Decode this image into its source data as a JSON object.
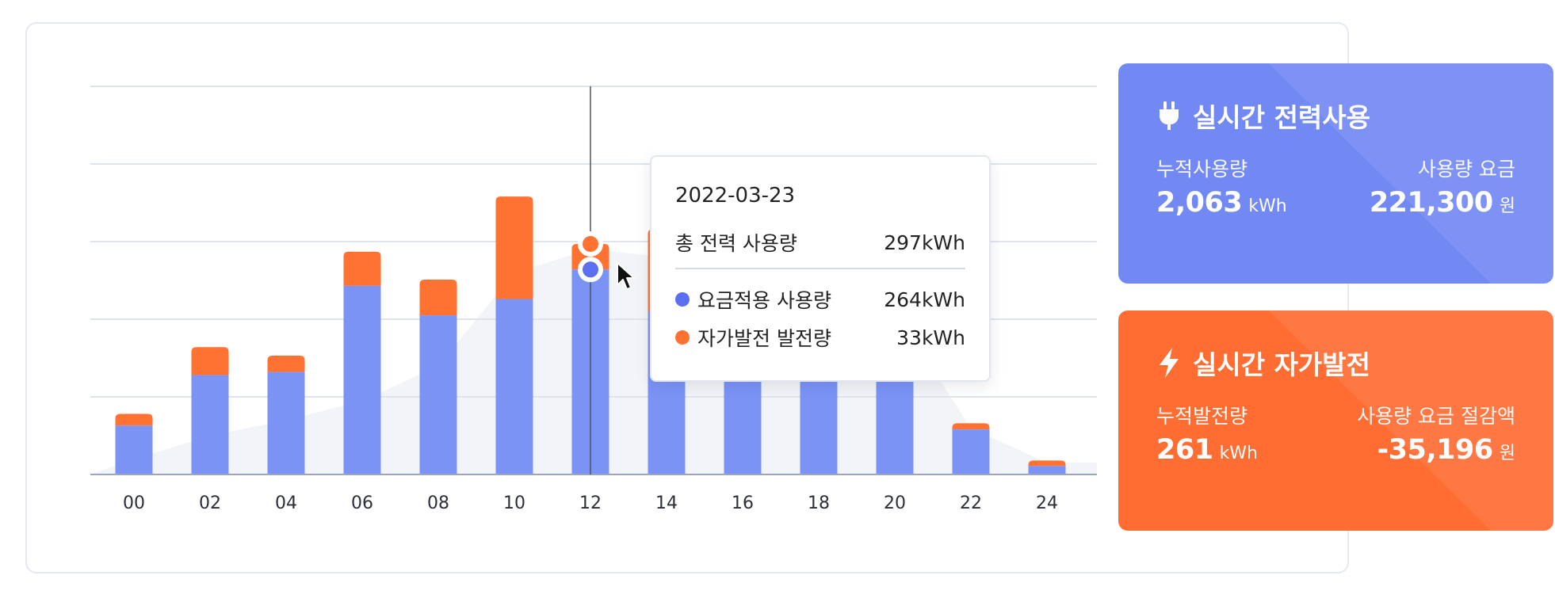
{
  "colors": {
    "usage_bar": "#7b93f5",
    "generation_bar": "#ff7232",
    "background_area": "#f3f4f7",
    "usage_card": "#7289f3",
    "generation_card": "#ff6d33",
    "grid": "#dfe4ec"
  },
  "chart_data": {
    "type": "bar",
    "stacked": true,
    "categories": [
      "00",
      "02",
      "04",
      "06",
      "08",
      "10",
      "12",
      "14",
      "16",
      "18",
      "20",
      "22",
      "24"
    ],
    "series": [
      {
        "name": "요금적용 사용량",
        "color": "#7b93f5",
        "values": [
          63,
          128,
          132,
          243,
          205,
          226,
          264,
          210,
          224,
          206,
          192,
          58,
          11
        ]
      },
      {
        "name": "자가발전 발전량",
        "color": "#ff7232",
        "values": [
          15,
          36,
          21,
          44,
          46,
          132,
          33,
          106,
          171,
          133,
          85,
          8,
          7
        ]
      }
    ],
    "background_area_values": [
      20,
      50,
      70,
      95,
      140,
      260,
      290,
      280,
      230,
      240,
      210,
      60,
      15
    ],
    "ylim": [
      0,
      500
    ],
    "gridlines": [
      0,
      100,
      200,
      300,
      400,
      500
    ],
    "grid": true,
    "highlighted_category": "12",
    "legend": "none"
  },
  "tooltip": {
    "date": "2022-03-23",
    "total_label": "총 전력 사용량",
    "total_value": "297kWh",
    "usage_label": "요금적용 사용량",
    "usage_value": "264kWh",
    "generation_label": "자가발전 발전량",
    "generation_value": "33kWh"
  },
  "usage_card": {
    "icon": "plug-icon",
    "title": "실시간 전력사용",
    "left_label": "누적사용량",
    "left_value": "2,063",
    "left_unit": "kWh",
    "right_label": "사용량 요금",
    "right_value": "221,300",
    "right_unit": "원"
  },
  "generation_card": {
    "icon": "lightning-icon",
    "title": "실시간 자가발전",
    "left_label": "누적발전량",
    "left_value": "261",
    "left_unit": "kWh",
    "right_label": "사용량 요금 절감액",
    "right_value": "-35,196",
    "right_unit": "원"
  }
}
